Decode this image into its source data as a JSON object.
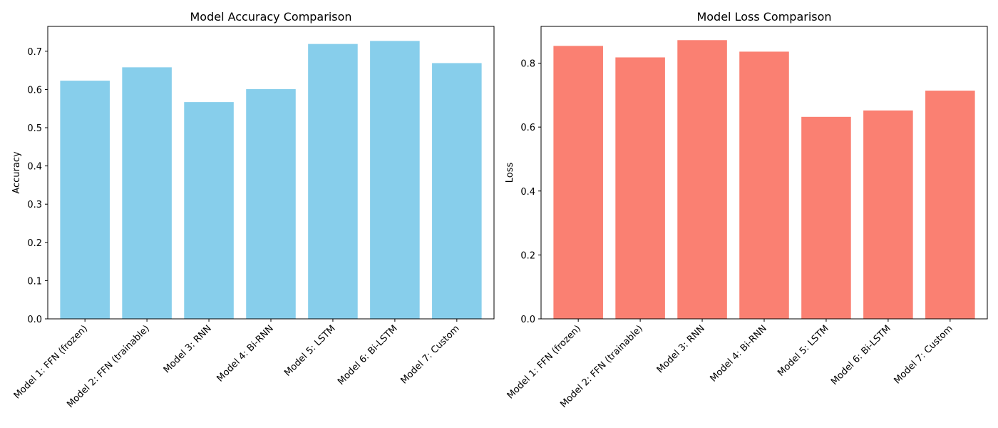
{
  "chart_data": [
    {
      "type": "bar",
      "title": "Model Accuracy Comparison",
      "xlabel": "",
      "ylabel": "Accuracy",
      "categories": [
        "Model 1: FFN (frozen)",
        "Model 2: FFN (trainable)",
        "Model 3: RNN",
        "Model 4: Bi-RNN",
        "Model 5: LSTM",
        "Model 6: Bi-LSTM",
        "Model 7: Custom"
      ],
      "values": [
        0.623,
        0.658,
        0.567,
        0.601,
        0.719,
        0.727,
        0.669
      ],
      "ylim": [
        0,
        0.765
      ],
      "yticks": [
        0.0,
        0.1,
        0.2,
        0.3,
        0.4,
        0.5,
        0.6,
        0.7
      ],
      "ytick_labels": [
        "0.0",
        "0.1",
        "0.2",
        "0.3",
        "0.4",
        "0.5",
        "0.6",
        "0.7"
      ],
      "color": "#87ceeb",
      "grid": false
    },
    {
      "type": "bar",
      "title": "Model Loss Comparison",
      "xlabel": "",
      "ylabel": "Loss",
      "categories": [
        "Model 1: FFN (frozen)",
        "Model 2: FFN (trainable)",
        "Model 3: RNN",
        "Model 4: Bi-RNN",
        "Model 5: LSTM",
        "Model 6: Bi-LSTM",
        "Model 7: Custom"
      ],
      "values": [
        0.854,
        0.818,
        0.872,
        0.836,
        0.632,
        0.652,
        0.714
      ],
      "ylim": [
        0,
        0.915
      ],
      "yticks": [
        0.0,
        0.2,
        0.4,
        0.6,
        0.8
      ],
      "ytick_labels": [
        "0.0",
        "0.2",
        "0.4",
        "0.6",
        "0.8"
      ],
      "color": "#fa8072",
      "grid": false
    }
  ]
}
